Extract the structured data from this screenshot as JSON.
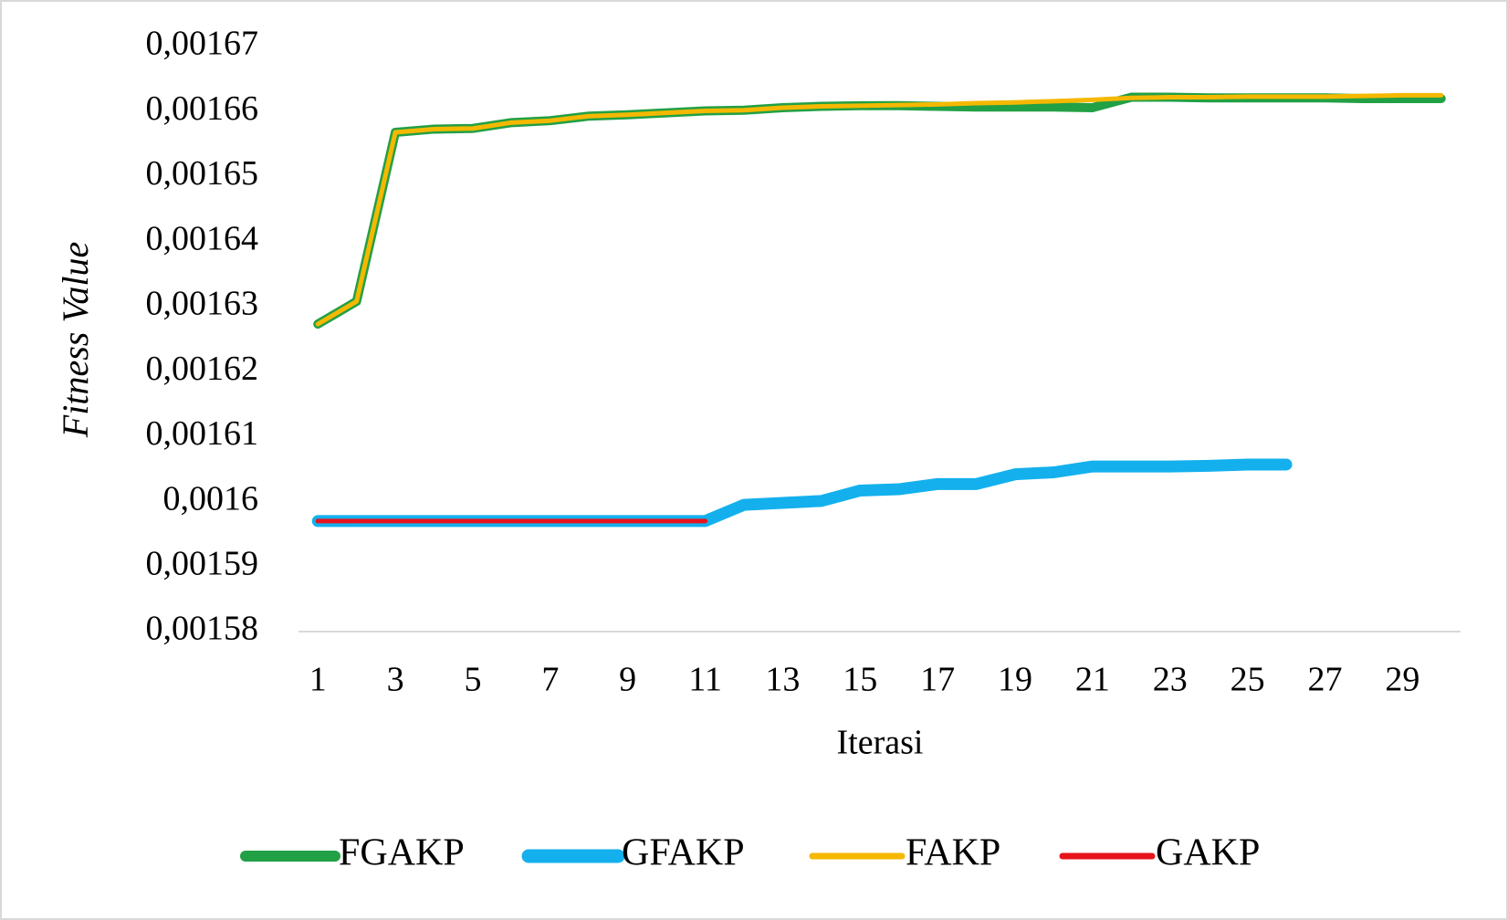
{
  "chart_data": {
    "type": "line",
    "x_label": "Iterasi",
    "y_label": "Fitness Value",
    "categories": [
      1,
      null,
      3,
      null,
      5,
      null,
      7,
      null,
      9,
      null,
      11,
      null,
      13,
      null,
      15,
      null,
      17,
      null,
      19,
      null,
      21,
      null,
      23,
      null,
      25,
      null,
      27,
      null,
      29,
      null
    ],
    "series": [
      {
        "name": "FGAKP",
        "color": "#22a045",
        "values": [
          0.0016273,
          0.0016308,
          0.0016568,
          0.0016573,
          0.0016574,
          0.0016583,
          0.0016586,
          0.0016593,
          0.0016595,
          0.0016598,
          0.0016601,
          0.0016602,
          0.0016606,
          0.0016608,
          0.0016609,
          0.0016609,
          0.0016608,
          0.0016607,
          0.0016607,
          0.0016607,
          0.0016606,
          0.0016622,
          0.0016622,
          0.0016621,
          0.0016621,
          0.0016621,
          0.0016621,
          0.001662,
          0.001662,
          0.001662
        ]
      },
      {
        "name": "GFAKP",
        "color": "#13b0ed",
        "values": [
          0.001597,
          0.001597,
          0.001597,
          0.001597,
          0.001597,
          0.001597,
          0.001597,
          0.001597,
          0.001597,
          0.001597,
          0.001597,
          0.0015995,
          0.0015998,
          0.0016001,
          0.0016017,
          0.0016019,
          0.0016027,
          0.0016027,
          0.0016042,
          0.0016045,
          0.0016054,
          0.0016054,
          0.0016054,
          0.0016055,
          0.0016057,
          0.0016057,
          null,
          null,
          null,
          null
        ]
      },
      {
        "name": "FAKP",
        "color": "#f5b800",
        "values": [
          0.0016273,
          0.0016308,
          0.0016568,
          0.0016573,
          0.0016574,
          0.0016583,
          0.0016586,
          0.0016593,
          0.0016595,
          0.0016598,
          0.0016601,
          0.0016602,
          0.0016606,
          0.0016608,
          0.0016609,
          0.001661,
          0.0016611,
          0.0016613,
          0.0016614,
          0.0016616,
          0.0016618,
          0.0016621,
          0.0016622,
          0.0016622,
          0.0016623,
          0.0016623,
          0.0016623,
          0.0016624,
          0.0016625,
          0.0016625
        ]
      },
      {
        "name": "GAKP",
        "color": "#e8141c",
        "values": [
          0.001597,
          0.001597,
          0.001597,
          0.001597,
          0.001597,
          0.001597,
          0.001597,
          0.001597,
          0.001597,
          0.001597,
          0.001597,
          null,
          null,
          null,
          null,
          null,
          null,
          null,
          null,
          null,
          null,
          null,
          null,
          null,
          null,
          null,
          null,
          null,
          null,
          null
        ]
      }
    ],
    "ylim": [
      0.00158,
      0.00167
    ],
    "yticks": [
      {
        "value": 0.00158,
        "label": "0,00158"
      },
      {
        "value": 0.00159,
        "label": "0,00159"
      },
      {
        "value": 0.0016,
        "label": "0,0016"
      },
      {
        "value": 0.00161,
        "label": "0,00161"
      },
      {
        "value": 0.00162,
        "label": "0,00162"
      },
      {
        "value": 0.00163,
        "label": "0,00163"
      },
      {
        "value": 0.00164,
        "label": "0,00164"
      },
      {
        "value": 0.00165,
        "label": "0,00165"
      },
      {
        "value": 0.00166,
        "label": "0,00166"
      },
      {
        "value": 0.00167,
        "label": "0,00167"
      }
    ],
    "grid": false,
    "legend": "bottom"
  }
}
